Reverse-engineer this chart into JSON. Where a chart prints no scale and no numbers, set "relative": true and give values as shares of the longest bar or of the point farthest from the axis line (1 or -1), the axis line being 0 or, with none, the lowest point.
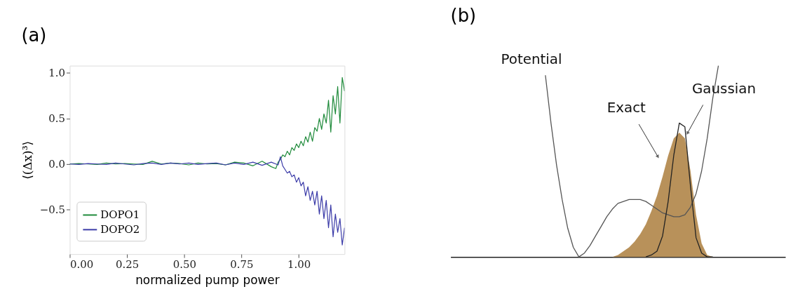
{
  "chart_data": [
    {
      "type": "line",
      "title": "(a)",
      "xlabel": "normalized pump power",
      "ylabel": "⟨(Δx)³⟩",
      "xlim": [
        0,
        1.2
      ],
      "ylim": [
        -0.99,
        1.08
      ],
      "xticks": [
        {
          "value": 0,
          "label": "0.00"
        },
        {
          "value": 0.25,
          "label": "0.25"
        },
        {
          "value": 0.5,
          "label": "0.50"
        },
        {
          "value": 0.75,
          "label": "0.75"
        },
        {
          "value": 1,
          "label": "1.00"
        }
      ],
      "yticks": [
        {
          "value": -0.5,
          "label": "−0.5"
        },
        {
          "value": 0,
          "label": "0.0"
        },
        {
          "value": 0.5,
          "label": "0.5"
        },
        {
          "value": 1,
          "label": "1.0"
        }
      ],
      "grid": false,
      "legend": "bottom left",
      "series": [
        {
          "name": "DOPO1",
          "color": "#1e8a3a",
          "x": [
            0,
            0.04,
            0.08,
            0.12,
            0.16,
            0.2,
            0.24,
            0.28,
            0.32,
            0.36,
            0.4,
            0.44,
            0.48,
            0.52,
            0.56,
            0.6,
            0.64,
            0.68,
            0.72,
            0.76,
            0.8,
            0.84,
            0.88,
            0.9,
            0.91,
            0.92,
            0.93,
            0.94,
            0.95,
            0.96,
            0.97,
            0.98,
            0.99,
            1.0,
            1.01,
            1.02,
            1.03,
            1.04,
            1.05,
            1.06,
            1.07,
            1.08,
            1.09,
            1.1,
            1.11,
            1.12,
            1.13,
            1.14,
            1.15,
            1.16,
            1.17,
            1.18,
            1.19,
            1.2
          ],
          "values": [
            0,
            0.005,
            0,
            -0.005,
            0.01,
            0,
            0.005,
            0,
            -0.005,
            0.03,
            0,
            0.01,
            0.005,
            -0.01,
            0.01,
            0,
            0.005,
            -0.01,
            0.02,
            0.01,
            -0.02,
            0.03,
            -0.03,
            -0.05,
            0.02,
            0.05,
            0.1,
            0.08,
            0.14,
            0.1,
            0.18,
            0.15,
            0.22,
            0.18,
            0.25,
            0.2,
            0.3,
            0.24,
            0.35,
            0.25,
            0.4,
            0.36,
            0.5,
            0.38,
            0.55,
            0.45,
            0.7,
            0.35,
            0.75,
            0.55,
            0.85,
            0.45,
            0.95,
            0.8
          ]
        },
        {
          "name": "DOPO2",
          "color": "#3b3ba8",
          "x": [
            0,
            0.04,
            0.08,
            0.12,
            0.16,
            0.2,
            0.24,
            0.28,
            0.32,
            0.36,
            0.4,
            0.44,
            0.48,
            0.52,
            0.56,
            0.6,
            0.64,
            0.68,
            0.72,
            0.76,
            0.8,
            0.84,
            0.88,
            0.9,
            0.91,
            0.92,
            0.93,
            0.94,
            0.95,
            0.96,
            0.97,
            0.98,
            0.99,
            1.0,
            1.01,
            1.02,
            1.03,
            1.04,
            1.05,
            1.06,
            1.07,
            1.08,
            1.09,
            1.1,
            1.11,
            1.12,
            1.13,
            1.14,
            1.15,
            1.16,
            1.17,
            1.18,
            1.19,
            1.2
          ],
          "values": [
            0,
            -0.005,
            0.005,
            0,
            -0.005,
            0.01,
            0,
            -0.01,
            0.005,
            0.01,
            -0.005,
            0.01,
            0,
            0.01,
            -0.005,
            0.005,
            0.01,
            -0.01,
            0.01,
            -0.005,
            0.02,
            -0.015,
            0.02,
            0.0,
            -0.01,
            0.08,
            -0.02,
            -0.06,
            -0.1,
            -0.08,
            -0.14,
            -0.12,
            -0.2,
            -0.15,
            -0.24,
            -0.2,
            -0.35,
            -0.25,
            -0.4,
            -0.3,
            -0.45,
            -0.3,
            -0.55,
            -0.35,
            -0.6,
            -0.4,
            -0.7,
            -0.45,
            -0.8,
            -0.55,
            -0.75,
            -0.6,
            -0.89,
            -0.7
          ]
        }
      ]
    },
    {
      "type": "line",
      "title": "(b)",
      "relative": true,
      "grid": false,
      "tick_labels": false,
      "categories": [
        null,
        null,
        null,
        null,
        null,
        null,
        null,
        null,
        null,
        null,
        null,
        null,
        null,
        null,
        null,
        null,
        null,
        null,
        null,
        null,
        null,
        null,
        null,
        null,
        null,
        null,
        null,
        null,
        null,
        null,
        null,
        null,
        null,
        null,
        null,
        null,
        null,
        null,
        null,
        null,
        null,
        null,
        null,
        null,
        null,
        null,
        null,
        null,
        null,
        null,
        null,
        null,
        null,
        null,
        null,
        null,
        null,
        null,
        null,
        null,
        null
      ],
      "series": [
        {
          "name": "Exact",
          "type": "area",
          "color": "#b8915a",
          "values": [
            null,
            null,
            null,
            null,
            null,
            null,
            null,
            null,
            null,
            null,
            null,
            null,
            null,
            null,
            null,
            null,
            null,
            null,
            null,
            null,
            null,
            null,
            null,
            null,
            null,
            null,
            null,
            null,
            null,
            0.0,
            0.01,
            0.03,
            0.05,
            0.08,
            0.12,
            0.17,
            0.24,
            0.32,
            0.42,
            0.53,
            0.62,
            0.65,
            0.62,
            0.45,
            0.22,
            0.07,
            0.01,
            0.0,
            null,
            null,
            null,
            null,
            null,
            null,
            null,
            null,
            null,
            null,
            null,
            null,
            null
          ]
        },
        {
          "name": "Potential",
          "type": "line",
          "color": "#555555",
          "values": [
            null,
            null,
            null,
            null,
            null,
            null,
            null,
            null,
            null,
            null,
            null,
            null,
            null,
            null,
            null,
            null,
            null,
            0.95,
            0.7,
            0.48,
            0.3,
            0.15,
            0.05,
            0.0,
            0.02,
            0.06,
            0.11,
            0.16,
            0.21,
            0.25,
            0.28,
            0.29,
            0.3,
            0.3,
            0.3,
            0.29,
            0.27,
            0.25,
            0.23,
            0.22,
            0.21,
            0.21,
            0.22,
            0.26,
            0.33,
            0.45,
            0.62,
            0.83,
            1.0,
            null,
            null,
            null,
            null,
            null,
            null,
            null,
            null,
            null,
            null,
            null,
            null
          ]
        },
        {
          "name": "Gaussian",
          "type": "line",
          "color": "#222222",
          "values": [
            null,
            null,
            null,
            null,
            null,
            null,
            null,
            null,
            null,
            null,
            null,
            null,
            null,
            null,
            null,
            null,
            null,
            null,
            null,
            null,
            null,
            null,
            null,
            null,
            null,
            null,
            null,
            null,
            null,
            null,
            null,
            null,
            null,
            null,
            null,
            0.0,
            0.01,
            0.03,
            0.11,
            0.29,
            0.53,
            0.7,
            0.68,
            0.37,
            0.1,
            0.02,
            0.0,
            0.0,
            null,
            null,
            null,
            null,
            null,
            null,
            null,
            null,
            null,
            null,
            null,
            null,
            null
          ]
        }
      ]
    }
  ]
}
